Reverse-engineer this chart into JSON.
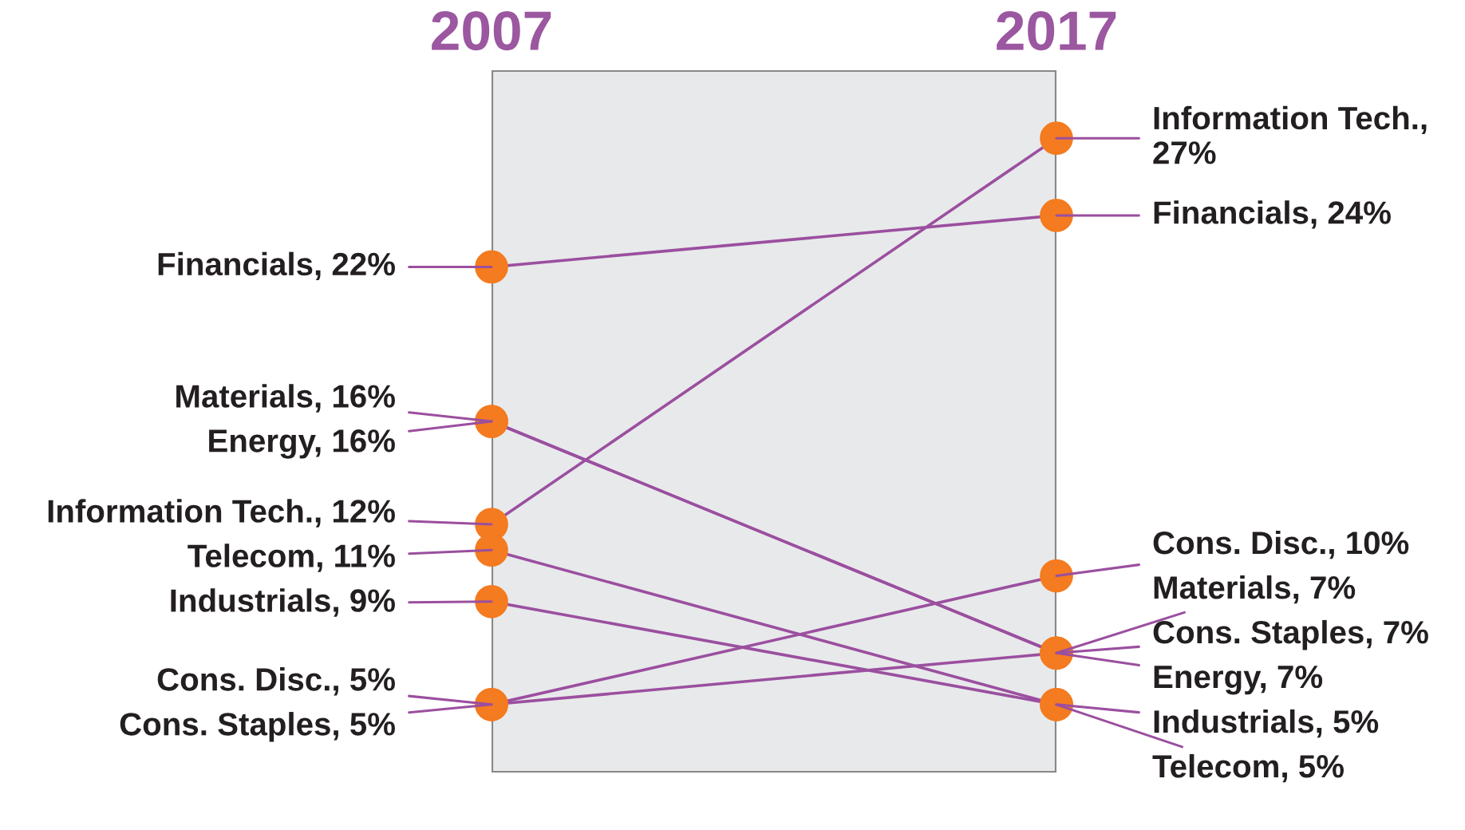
{
  "chart_data": {
    "type": "line",
    "categories": [
      "2007",
      "2017"
    ],
    "marker": "circle",
    "series": [
      {
        "color": "#9b4f9f",
        "colors": [
          "#f47b20",
          "#f47b20"
        ],
        "values": [
          12,
          27
        ],
        "value_labels": [
          "Information Tech., 12%",
          "Information Tech., 27%"
        ]
      },
      {
        "color": "#9b4f9f",
        "colors": [
          "#f47b20",
          "#f47b20"
        ],
        "values": [
          22,
          24
        ],
        "value_labels": [
          "Financials, 22%",
          "Financials, 24%"
        ]
      },
      {
        "color": "#9b4f9f",
        "colors": [
          "#f47b20",
          "#f47b20"
        ],
        "values": [
          5,
          10
        ],
        "value_labels": [
          "Cons. Disc., 5%",
          "Cons. Disc., 10%"
        ]
      },
      {
        "color": "#9b4f9f",
        "colors": [
          "#f47b20",
          "#f47b20"
        ],
        "values": [
          16,
          7
        ],
        "value_labels": [
          "Materials, 16%",
          "Materials, 7%"
        ]
      },
      {
        "color": "#9b4f9f",
        "colors": [
          "#f47b20",
          "#f47b20"
        ],
        "values": [
          5,
          7
        ],
        "value_labels": [
          "Cons. Staples, 5%",
          "Cons. Staples, 7%"
        ]
      },
      {
        "color": "#9b4f9f",
        "colors": [
          "#f47b20",
          "#f47b20"
        ],
        "values": [
          16,
          7
        ],
        "value_labels": [
          "Energy, 16%",
          "Energy, 7%"
        ]
      },
      {
        "color": "#9b4f9f",
        "colors": [
          "#f47b20",
          "#f47b20"
        ],
        "values": [
          9,
          5
        ],
        "value_labels": [
          "Industrials, 9%",
          "Industrials, 5%"
        ]
      },
      {
        "color": "#9b4f9f",
        "colors": [
          "#f47b20",
          "#f47b20"
        ],
        "values": [
          11,
          5
        ],
        "value_labels": [
          "Telecom, 11%",
          "Telecom, 5%"
        ]
      }
    ]
  }
}
